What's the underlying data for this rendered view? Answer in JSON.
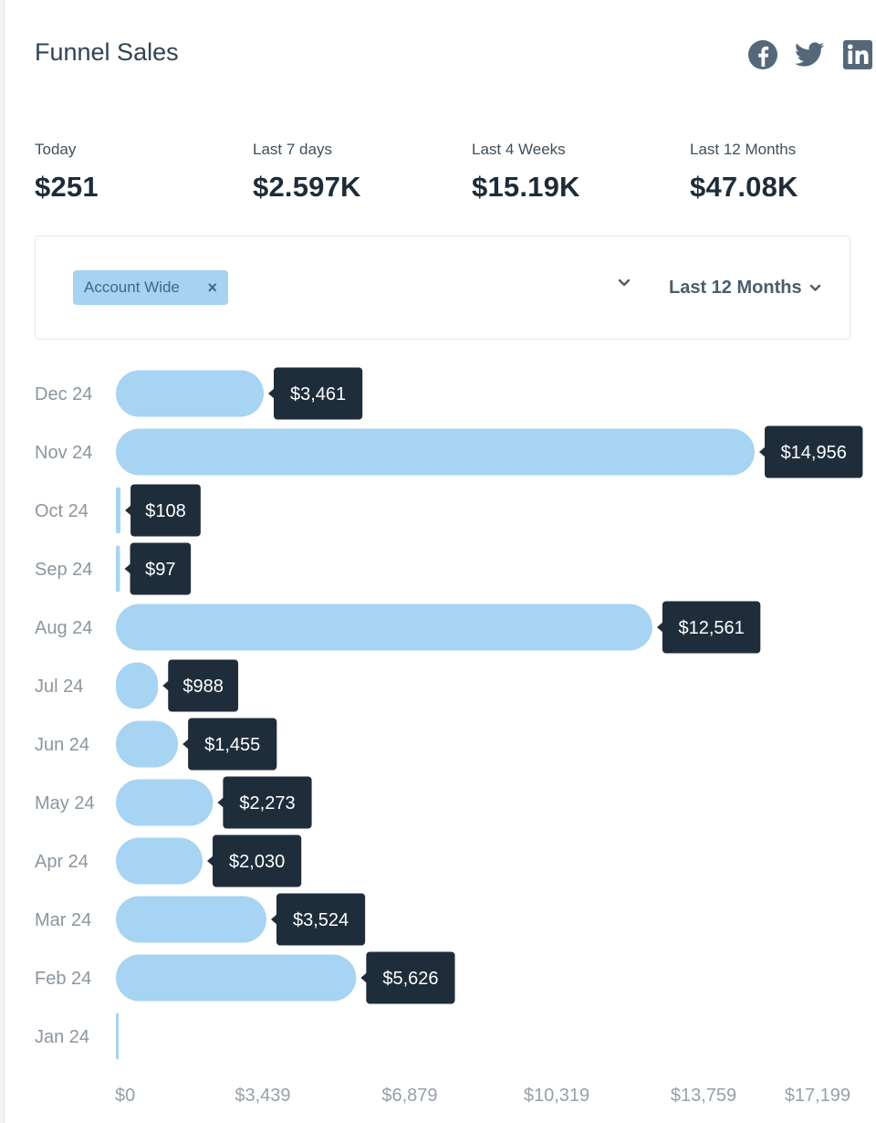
{
  "header": {
    "title": "Funnel Sales",
    "social": [
      "facebook-icon",
      "twitter-icon",
      "linkedin-icon"
    ]
  },
  "stats": [
    {
      "label": "Today",
      "value": "$251"
    },
    {
      "label": "Last 7 days",
      "value": "$2.597K"
    },
    {
      "label": "Last 4 Weeks",
      "value": "$15.19K"
    },
    {
      "label": "Last 12 Months",
      "value": "$47.08K"
    }
  ],
  "filters": {
    "chip_label": "Account Wide",
    "chip_close": "×",
    "range_label": "Last 12 Months"
  },
  "colors": {
    "bar": "#a7d4f2",
    "tooltip": "#1f2d3b",
    "chip": "#a6d3f1",
    "social_icon": "#55687a"
  },
  "chart_data": {
    "type": "bar",
    "orientation": "horizontal",
    "categories": [
      "Dec 24",
      "Nov 24",
      "Oct 24",
      "Sep 24",
      "Aug 24",
      "Jul 24",
      "Jun 24",
      "May 24",
      "Apr 24",
      "Mar 24",
      "Feb 24",
      "Jan 24"
    ],
    "values": [
      3461,
      14956,
      108,
      97,
      12561,
      988,
      1455,
      2273,
      2030,
      3524,
      5626,
      0
    ],
    "value_labels": [
      "$3,461",
      "$14,956",
      "$108",
      "$97",
      "$12,561",
      "$988",
      "$1,455",
      "$2,273",
      "$2,030",
      "$3,524",
      "$5,626",
      ""
    ],
    "x_ticks": [
      0,
      3439,
      6879,
      10319,
      13759,
      17199
    ],
    "x_tick_labels": [
      "$0",
      "$3,439",
      "$6,879",
      "$10,319",
      "$13,759",
      "$17,199"
    ],
    "xlim": [
      0,
      17199
    ],
    "grid": false,
    "legend": "none"
  }
}
